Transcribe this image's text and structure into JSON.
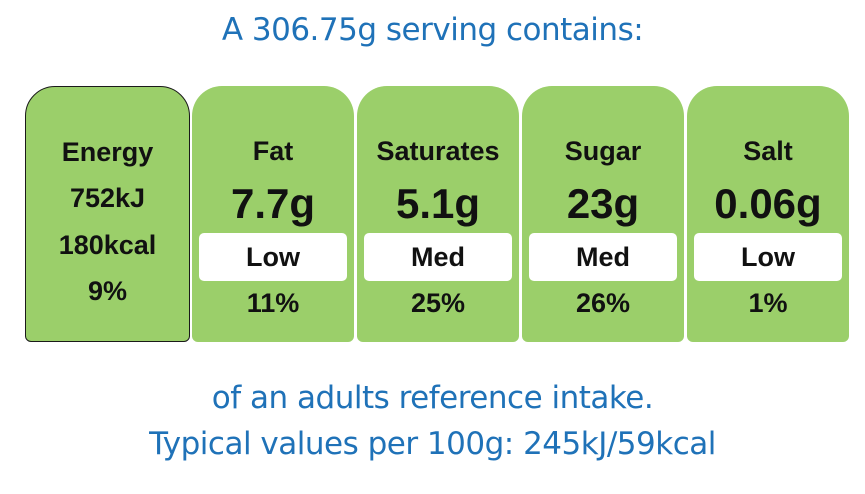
{
  "title": "A 306.75g serving contains:",
  "energy": {
    "label": "Energy",
    "kj": "752kJ",
    "kcal": "180kcal",
    "percent": "9%"
  },
  "nutrients": [
    {
      "label": "Fat",
      "value": "7.7g",
      "level": "Low",
      "percent": "11%"
    },
    {
      "label": "Saturates",
      "value": "5.1g",
      "level": "Med",
      "percent": "25%"
    },
    {
      "label": "Sugar",
      "value": "23g",
      "level": "Med",
      "percent": "26%"
    },
    {
      "label": "Salt",
      "value": "0.06g",
      "level": "Low",
      "percent": "1%"
    }
  ],
  "footer": {
    "line1": "of an adults reference intake.",
    "line2": "Typical values per 100g: 245kJ/59kcal"
  },
  "colors": {
    "card_green": "#9bcf6a",
    "text_blue": "#1f72b8"
  }
}
